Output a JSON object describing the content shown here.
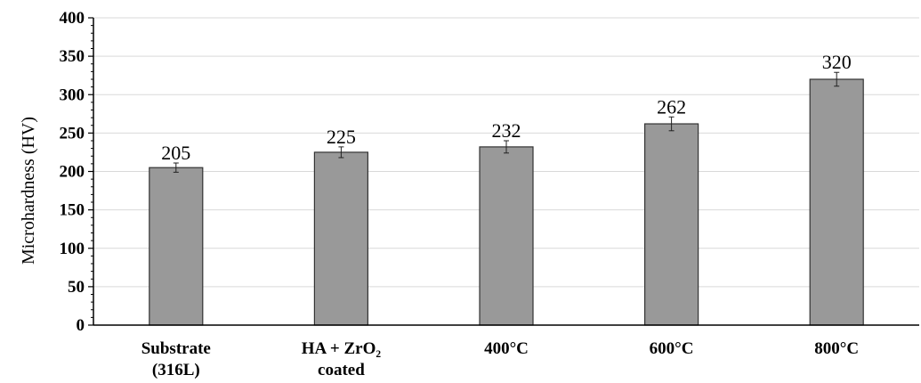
{
  "chart_data": {
    "type": "bar",
    "categories": [
      [
        "Substrate",
        "(316L)"
      ],
      [
        "HA + ZrO₂",
        "coated"
      ],
      [
        "400°C"
      ],
      [
        "600°C"
      ],
      [
        "800°C"
      ]
    ],
    "values": [
      205,
      225,
      232,
      262,
      320
    ],
    "errors": [
      6,
      7,
      8,
      9,
      9
    ],
    "value_labels": [
      "205",
      "225",
      "232",
      "262",
      "320"
    ],
    "ylabel": "Microhardness (HV)",
    "ylim": [
      0,
      400
    ],
    "yticks": [
      0,
      50,
      100,
      150,
      200,
      250,
      300,
      350,
      400
    ],
    "grid": true,
    "bar_color": "#999999",
    "bar_edge_color": "#333333",
    "grid_color": "#d9d9d9"
  }
}
